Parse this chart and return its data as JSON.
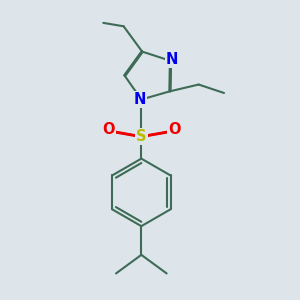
{
  "bg_color": "#dde5ea",
  "bond_color": "#3d6b55",
  "bond_width": 1.5,
  "dbo": 0.018,
  "atom_colors": {
    "N": "#0000ee",
    "S": "#bbbb00",
    "O": "#ee0000",
    "C": "#3d6b55"
  },
  "fsize": 10.5
}
